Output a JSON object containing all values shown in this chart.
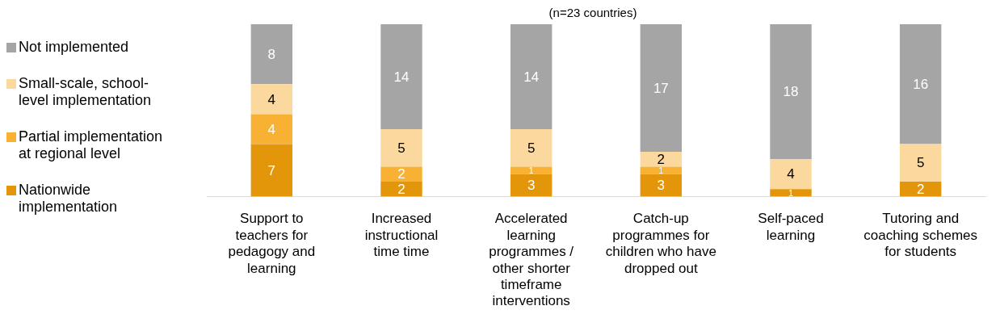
{
  "chart_data": {
    "type": "bar",
    "subtitle": "(n=23 countries)",
    "categories": [
      "Support to teachers for pedagogy and learning",
      "Increased instructional time time",
      "Accelerated learning programmes / other shorter timeframe interventions",
      "Catch-up programmes for children who have dropped out",
      "Self-paced learning",
      "Tutoring and coaching schemes for students"
    ],
    "stacked": true,
    "data_labels": true,
    "legend": "left",
    "grid": false,
    "relative": false,
    "series": [
      {
        "name": "Nationwide implementation",
        "color": "#e3960a",
        "values": [
          7,
          2,
          3,
          3,
          1,
          2
        ]
      },
      {
        "name": "Partial implementation at regional level",
        "color": "#f8b133",
        "values": [
          4,
          2,
          1,
          1,
          null,
          null
        ]
      },
      {
        "name": "Small-scale, school-level implementation",
        "color": "#fbd99e",
        "values": [
          4,
          5,
          5,
          2,
          4,
          5
        ]
      },
      {
        "name": "Not implemented",
        "color": "#a5a5a5",
        "values": [
          8,
          14,
          14,
          17,
          18,
          16
        ]
      }
    ]
  }
}
